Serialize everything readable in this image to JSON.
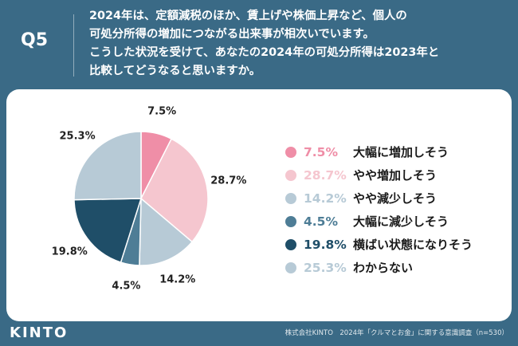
{
  "header": {
    "q_label": "Q5",
    "question_lines": [
      "2024年は、定額減税のほか、賃上げや株価上昇など、個人の",
      "可処分所得の増加につながる出来事が相次いでいます。",
      "こうした状況を受けて、あなたの2024年の可処分所得は2023年と",
      "比較してどうなると思いますか。"
    ]
  },
  "footer": {
    "logo": "KINTO",
    "source": "株式会社KINTO　2024年「クルマとお金」に関する意識調査（n=530）"
  },
  "colors": {
    "header_bg": "#3a6a86",
    "card_bg": "#ffffff"
  },
  "chart_data": {
    "type": "pie",
    "unit": "%",
    "start_angle_deg": 0,
    "direction": "clockwise",
    "legend_position": "right",
    "slices": [
      {
        "label": "大幅に増加しそう",
        "value": 7.5,
        "display": "7.5%",
        "color": "#ef8ea7"
      },
      {
        "label": "やや増加しそう",
        "value": 28.7,
        "display": "28.7%",
        "color": "#f5c6cf"
      },
      {
        "label": "やや減少しそう",
        "value": 14.2,
        "display": "14.2%",
        "color": "#b7cad6"
      },
      {
        "label": "大幅に減少しそう",
        "value": 4.5,
        "display": "4.5%",
        "color": "#4e7d96"
      },
      {
        "label": "横ばい状態になりそう",
        "value": 19.8,
        "display": "19.8%",
        "color": "#1f4e68"
      },
      {
        "label": "わからない",
        "value": 25.3,
        "display": "25.3%",
        "color": "#b7cad6"
      }
    ]
  }
}
